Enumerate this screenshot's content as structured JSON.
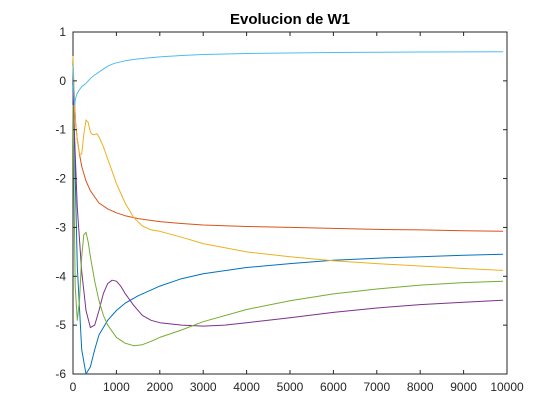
{
  "chart_data": {
    "type": "line",
    "title": "Evolucion de W1",
    "xlabel": "",
    "ylabel": "",
    "xlim": [
      0,
      10000
    ],
    "ylim": [
      -6,
      1
    ],
    "xticks": [
      0,
      1000,
      2000,
      3000,
      4000,
      5000,
      6000,
      7000,
      8000,
      9000,
      10000
    ],
    "xtick_labels": [
      "0",
      "1000",
      "2000",
      "3000",
      "4000",
      "5000",
      "6000",
      "7000",
      "8000",
      "9000",
      "10000"
    ],
    "yticks": [
      1,
      0,
      -1,
      -2,
      -3,
      -4,
      -5,
      -6
    ],
    "ytick_labels": [
      "1",
      "0",
      "-1",
      "-2",
      "-3",
      "-4",
      "-5",
      "-6"
    ],
    "grid": false,
    "legend": "none",
    "series": [
      {
        "color": "#0072BD",
        "x": [
          0,
          40,
          100,
          200,
          300,
          400,
          500,
          600,
          800,
          1000,
          1200,
          1500,
          2000,
          2500,
          3000,
          4000,
          5000,
          6000,
          7000,
          8000,
          9000,
          9900
        ],
        "y": [
          -0.1,
          -1.5,
          -3.8,
          -5.5,
          -6.0,
          -5.85,
          -5.5,
          -5.2,
          -4.9,
          -4.7,
          -4.55,
          -4.4,
          -4.2,
          -4.05,
          -3.95,
          -3.82,
          -3.74,
          -3.67,
          -3.63,
          -3.6,
          -3.57,
          -3.55
        ]
      },
      {
        "color": "#D95319",
        "x": [
          0,
          30,
          60,
          100,
          150,
          200,
          300,
          400,
          600,
          800,
          1000,
          1200,
          1500,
          2000,
          2500,
          3000,
          4000,
          5000,
          6000,
          7000,
          8000,
          9000,
          9900
        ],
        "y": [
          0.3,
          -0.3,
          -0.85,
          -1.2,
          -1.5,
          -1.75,
          -2.05,
          -2.25,
          -2.5,
          -2.62,
          -2.7,
          -2.76,
          -2.82,
          -2.88,
          -2.92,
          -2.95,
          -2.98,
          -3.0,
          -3.02,
          -3.04,
          -3.05,
          -3.07,
          -3.08
        ]
      },
      {
        "color": "#EDB120",
        "x": [
          0,
          30,
          60,
          100,
          150,
          200,
          250,
          300,
          350,
          400,
          450,
          500,
          550,
          600,
          700,
          800,
          900,
          1000,
          1200,
          1400,
          1600,
          1800,
          2000,
          2500,
          3000,
          4000,
          5000,
          6000,
          7000,
          8000,
          9000,
          9900
        ],
        "y": [
          0.5,
          -0.3,
          -0.9,
          -1.2,
          -1.5,
          -1.5,
          -1.1,
          -0.8,
          -0.85,
          -1.05,
          -1.1,
          -1.1,
          -1.08,
          -1.15,
          -1.35,
          -1.6,
          -1.85,
          -2.1,
          -2.5,
          -2.8,
          -2.97,
          -3.05,
          -3.08,
          -3.2,
          -3.33,
          -3.5,
          -3.6,
          -3.68,
          -3.74,
          -3.79,
          -3.84,
          -3.88
        ]
      },
      {
        "color": "#7E2F8E",
        "x": [
          0,
          50,
          100,
          200,
          300,
          400,
          500,
          600,
          700,
          800,
          900,
          1000,
          1100,
          1200,
          1400,
          1600,
          1800,
          2000,
          2500,
          3000,
          3500,
          4000,
          5000,
          6000,
          7000,
          8000,
          9000,
          9900
        ],
        "y": [
          -0.2,
          -1.5,
          -2.6,
          -3.9,
          -4.7,
          -5.05,
          -5.0,
          -4.7,
          -4.35,
          -4.15,
          -4.08,
          -4.1,
          -4.2,
          -4.35,
          -4.6,
          -4.8,
          -4.9,
          -4.95,
          -5.0,
          -5.02,
          -5.0,
          -4.95,
          -4.85,
          -4.74,
          -4.65,
          -4.58,
          -4.53,
          -4.49
        ]
      },
      {
        "color": "#77AC30",
        "x": [
          0,
          50,
          100,
          150,
          200,
          250,
          300,
          350,
          400,
          500,
          600,
          700,
          800,
          1000,
          1200,
          1400,
          1600,
          1800,
          2000,
          2500,
          3000,
          4000,
          5000,
          6000,
          7000,
          8000,
          9000,
          9900
        ],
        "y": [
          -0.5,
          -4.2,
          -4.9,
          -4.5,
          -3.6,
          -3.15,
          -3.1,
          -3.3,
          -3.6,
          -4.1,
          -4.5,
          -4.8,
          -5.0,
          -5.25,
          -5.37,
          -5.42,
          -5.4,
          -5.33,
          -5.25,
          -5.1,
          -4.93,
          -4.68,
          -4.5,
          -4.36,
          -4.26,
          -4.18,
          -4.13,
          -4.1
        ]
      },
      {
        "color": "#4DBEEE",
        "x": [
          0,
          20,
          40,
          60,
          100,
          150,
          200,
          300,
          400,
          500,
          600,
          700,
          800,
          900,
          1000,
          1200,
          1500,
          2000,
          2500,
          3000,
          4000,
          5000,
          6000,
          7000,
          8000,
          9000,
          9900
        ],
        "y": [
          0.3,
          -0.3,
          -0.5,
          -0.35,
          -0.25,
          -0.18,
          -0.12,
          -0.05,
          0.05,
          0.12,
          0.18,
          0.24,
          0.3,
          0.34,
          0.37,
          0.41,
          0.45,
          0.49,
          0.52,
          0.54,
          0.56,
          0.57,
          0.58,
          0.585,
          0.59,
          0.592,
          0.595
        ]
      }
    ]
  }
}
